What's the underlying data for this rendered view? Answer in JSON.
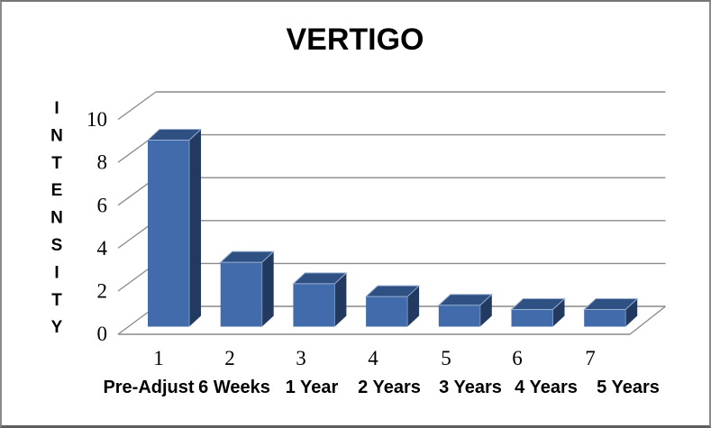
{
  "frame": {
    "background": "#FFFFFF",
    "border_color": "#787878"
  },
  "chart_data": {
    "type": "bar",
    "style": "3d-column",
    "title": "VERTIGO",
    "ylabel": "INTENSITY",
    "xlabel": "",
    "categories": [
      "1",
      "2",
      "3",
      "4",
      "5",
      "6",
      "7"
    ],
    "category_labels": [
      "Pre-Adjust",
      "6 Weeks",
      "1 Year",
      "2 Years",
      "3 Years",
      "4 Years",
      "5 Years"
    ],
    "values": [
      8.7,
      3,
      2,
      1.4,
      1,
      0.8,
      0.8
    ],
    "ylim": [
      0,
      10
    ],
    "yticks": [
      0,
      2,
      4,
      6,
      8,
      10
    ],
    "grid": true,
    "legend": "none",
    "colors": {
      "bar_front": "#416BAB",
      "bar_top": "#2E5082",
      "bar_side": "#223A5F",
      "bar_edge_highlight": "#9AB0D4",
      "bar_right_edge": "#7A94BF",
      "gridline": "#8A8A8A",
      "text": "#000000"
    }
  }
}
